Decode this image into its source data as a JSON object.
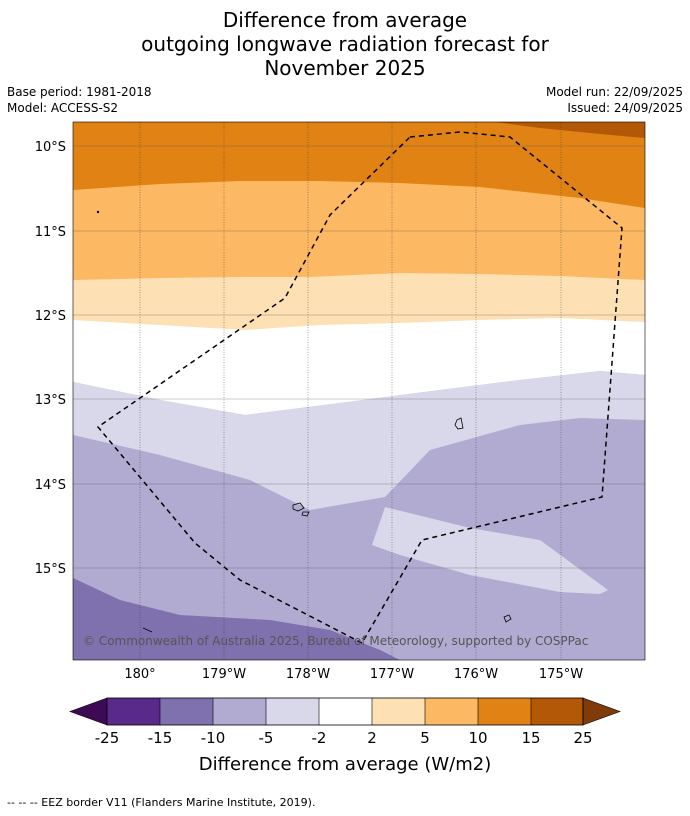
{
  "title": {
    "line1": "Difference from average",
    "line2": "outgoing longwave radiation forecast for",
    "line3": "November 2025"
  },
  "meta": {
    "base_period": "Base period: 1981-2018",
    "model": "Model: ACCESS-S2",
    "model_run": "Model run: 22/09/2025",
    "issued": "Issued: 24/09/2025"
  },
  "map": {
    "lat_labels": [
      "10°S",
      "11°S",
      "12°S",
      "13°S",
      "14°S",
      "15°S"
    ],
    "lon_labels": [
      "180°",
      "179°W",
      "178°W",
      "177°W",
      "176°W",
      "175°W"
    ],
    "copyright": "© Commonwealth of Australia 2025, Bureau of Meteorology, supported by COSPPac",
    "colors": {
      "p25": "#3f0a55",
      "p15": "#5a2a8a",
      "p10": "#7f71ad",
      "p5": "#b1abd1",
      "p2": "#d8d8ea",
      "zero": "#ffffff",
      "o2": "#fee0b5",
      "o5": "#fcb862",
      "o10": "#e08214",
      "o15": "#b35806",
      "o25": "#7f3b08"
    }
  },
  "colorbar": {
    "ticks": [
      "-25",
      "-15",
      "-10",
      "-5",
      "-2",
      "2",
      "5",
      "10",
      "15",
      "25"
    ],
    "label": "Difference from average (W/m2)"
  },
  "footer": {
    "legend": "--  --  -- EEZ border V11 (Flanders Marine Institute, 2019)."
  }
}
